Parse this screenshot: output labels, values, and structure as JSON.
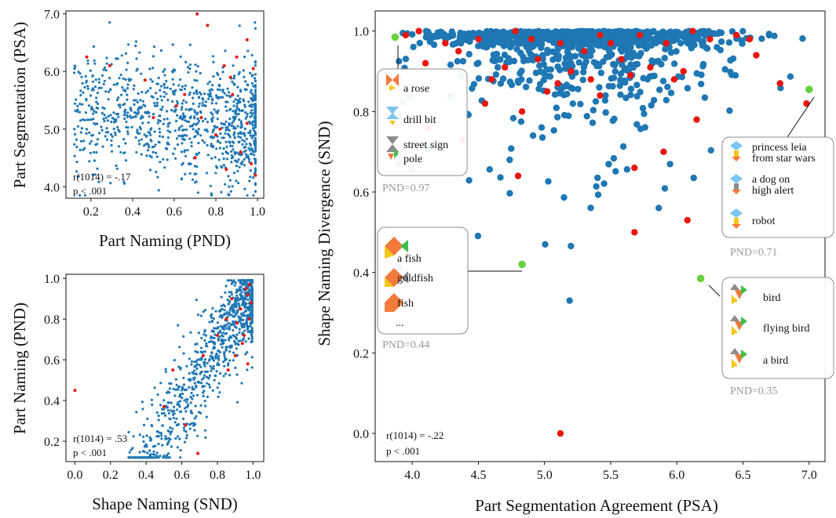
{
  "colors": {
    "dot": "#1f77b4",
    "highlight": "#e8160c",
    "example": "#67d23c",
    "axis": "#111111",
    "callout_border": "#8c8c8c",
    "pnd_text": "#999999"
  },
  "chart_data": [
    {
      "type": "scatter",
      "id": "psa_vs_pnd",
      "xlabel": "Part Naming (PND)",
      "ylabel": "Part Segmentation (PSA)",
      "xlim": [
        0.08,
        1.03
      ],
      "ylim": [
        3.8,
        7.05
      ],
      "xticks": [
        "0.2",
        "0.4",
        "0.6",
        "0.8",
        "1.0"
      ],
      "yticks": [
        "4.0",
        "5.0",
        "6.0",
        "7.0"
      ],
      "stats": [
        "r(1014) =  -.17",
        "p < .001"
      ],
      "n_points": 1016,
      "series": [
        {
          "color": "blue",
          "count": 1016
        },
        {
          "color": "red",
          "points": [
            [
              0.18,
              6.25
            ],
            [
              0.29,
              6.1
            ],
            [
              0.46,
              5.85
            ],
            [
              0.5,
              5.2
            ],
            [
              0.61,
              5.4
            ],
            [
              0.65,
              5.6
            ],
            [
              0.7,
              4.5
            ],
            [
              0.71,
              7.0
            ],
            [
              0.73,
              5.2
            ],
            [
              0.76,
              6.8
            ],
            [
              0.8,
              4.9
            ],
            [
              0.82,
              5.0
            ],
            [
              0.84,
              6.1
            ],
            [
              0.85,
              4.3
            ],
            [
              0.88,
              5.6
            ],
            [
              0.9,
              6.25
            ],
            [
              0.92,
              4.6
            ],
            [
              0.95,
              5.1
            ],
            [
              0.97,
              4.4
            ],
            [
              0.98,
              6.05
            ],
            [
              0.99,
              4.2
            ],
            [
              0.95,
              6.55
            ],
            [
              0.87,
              5.9
            ]
          ]
        }
      ]
    },
    {
      "type": "scatter",
      "id": "pnd_vs_snd",
      "xlabel": "Shape Naming (SND)",
      "ylabel": "Part Naming (PND)",
      "xlim": [
        -0.05,
        1.06
      ],
      "ylim": [
        0.1,
        1.02
      ],
      "xticks": [
        "0.0",
        "0.2",
        "0.4",
        "0.6",
        "0.8",
        "1.0"
      ],
      "yticks": [
        "0.2",
        "0.4",
        "0.6",
        "0.8",
        "1.0"
      ],
      "stats": [
        "r(1014) =   .53",
        "p < .001"
      ],
      "n_points": 1016,
      "series": [
        {
          "color": "blue",
          "count": 1016
        },
        {
          "color": "red",
          "points": [
            [
              0.0,
              0.45
            ],
            [
              0.69,
              0.14
            ],
            [
              0.62,
              0.28
            ],
            [
              0.5,
              0.37
            ],
            [
              0.55,
              0.55
            ],
            [
              0.72,
              0.62
            ],
            [
              0.8,
              0.72
            ],
            [
              0.85,
              0.8
            ],
            [
              0.88,
              0.9
            ],
            [
              0.9,
              0.62
            ],
            [
              0.93,
              0.85
            ],
            [
              0.95,
              0.72
            ],
            [
              0.96,
              0.95
            ],
            [
              0.97,
              0.92
            ],
            [
              0.98,
              0.8
            ],
            [
              0.99,
              0.88
            ],
            [
              0.98,
              0.97
            ],
            [
              0.94,
              0.68
            ],
            [
              0.91,
              0.78
            ],
            [
              0.86,
              0.55
            ],
            [
              0.97,
              0.58
            ]
          ]
        }
      ]
    },
    {
      "type": "scatter",
      "id": "snd_vs_psa",
      "xlabel": "Part Segmentation Agreement (PSA)",
      "ylabel": "Shape Naming Divergence (SND)",
      "xlim": [
        3.72,
        7.12
      ],
      "ylim": [
        -0.07,
        1.05
      ],
      "xticks": [
        "4.0",
        "4.5",
        "5.0",
        "5.5",
        "6.0",
        "6.5",
        "7.0"
      ],
      "yticks": [
        "0.0",
        "0.2",
        "0.4",
        "0.6",
        "0.8",
        "1.0"
      ],
      "stats": [
        "r(1014) =  -.22",
        "p < .001"
      ],
      "n_points": 1016,
      "series": [
        {
          "color": "blue",
          "count": 1016
        },
        {
          "color": "red",
          "points": [
            [
              3.95,
              0.99
            ],
            [
              4.05,
              1.0
            ],
            [
              4.1,
              0.92
            ],
            [
              4.25,
              0.97
            ],
            [
              4.35,
              0.95
            ],
            [
              4.5,
              0.98
            ],
            [
              4.6,
              0.88
            ],
            [
              4.7,
              0.91
            ],
            [
              4.78,
              1.0
            ],
            [
              4.83,
              0.8
            ],
            [
              4.9,
              0.98
            ],
            [
              4.95,
              0.93
            ],
            [
              5.02,
              0.85
            ],
            [
              5.1,
              0.87
            ],
            [
              5.12,
              0.97
            ],
            [
              5.2,
              0.9
            ],
            [
              5.3,
              0.95
            ],
            [
              5.35,
              0.88
            ],
            [
              5.42,
              0.99
            ],
            [
              5.5,
              0.97
            ],
            [
              5.58,
              0.93
            ],
            [
              5.65,
              0.89
            ],
            [
              5.72,
              0.99
            ],
            [
              5.8,
              0.91
            ],
            [
              5.92,
              0.97
            ],
            [
              5.98,
              0.88
            ],
            [
              6.05,
              0.9
            ],
            [
              6.12,
              1.0
            ],
            [
              6.25,
              0.98
            ],
            [
              6.45,
              0.99
            ],
            [
              6.55,
              0.98
            ],
            [
              6.6,
              0.94
            ],
            [
              6.78,
              0.87
            ],
            [
              6.98,
              0.82
            ],
            [
              4.38,
              0.73
            ],
            [
              4.8,
              0.64
            ],
            [
              5.68,
              0.66
            ],
            [
              5.68,
              0.5
            ],
            [
              6.08,
              0.53
            ],
            [
              6.6,
              0.6
            ],
            [
              6.15,
              0.78
            ],
            [
              5.42,
              0.84
            ],
            [
              5.12,
              0.0
            ],
            [
              4.12,
              0.76
            ],
            [
              4.55,
              0.82
            ],
            [
              5.9,
              0.7
            ]
          ]
        },
        {
          "color": "green",
          "points": [
            [
              3.87,
              0.985
            ],
            [
              7.0,
              0.855
            ],
            [
              4.83,
              0.42
            ],
            [
              6.18,
              0.385
            ]
          ]
        }
      ],
      "callouts": [
        {
          "labels": [
            "a rose",
            "drill bit",
            "street sign",
            "pole"
          ],
          "pnd": "PND=0.97",
          "shape": "rose"
        },
        {
          "labels": [
            "princess leia",
            "from star wars",
            "a dog on",
            "high alert",
            "robot"
          ],
          "pnd": "PND=0.71",
          "shape": "person"
        },
        {
          "labels": [
            "a fish",
            "goldfish",
            "fish",
            "..."
          ],
          "pnd": "PND=0.44",
          "shape": "fish"
        },
        {
          "labels": [
            "bird",
            "flying bird",
            "a bird"
          ],
          "pnd": "PND=0.35",
          "shape": "bird"
        }
      ]
    }
  ]
}
